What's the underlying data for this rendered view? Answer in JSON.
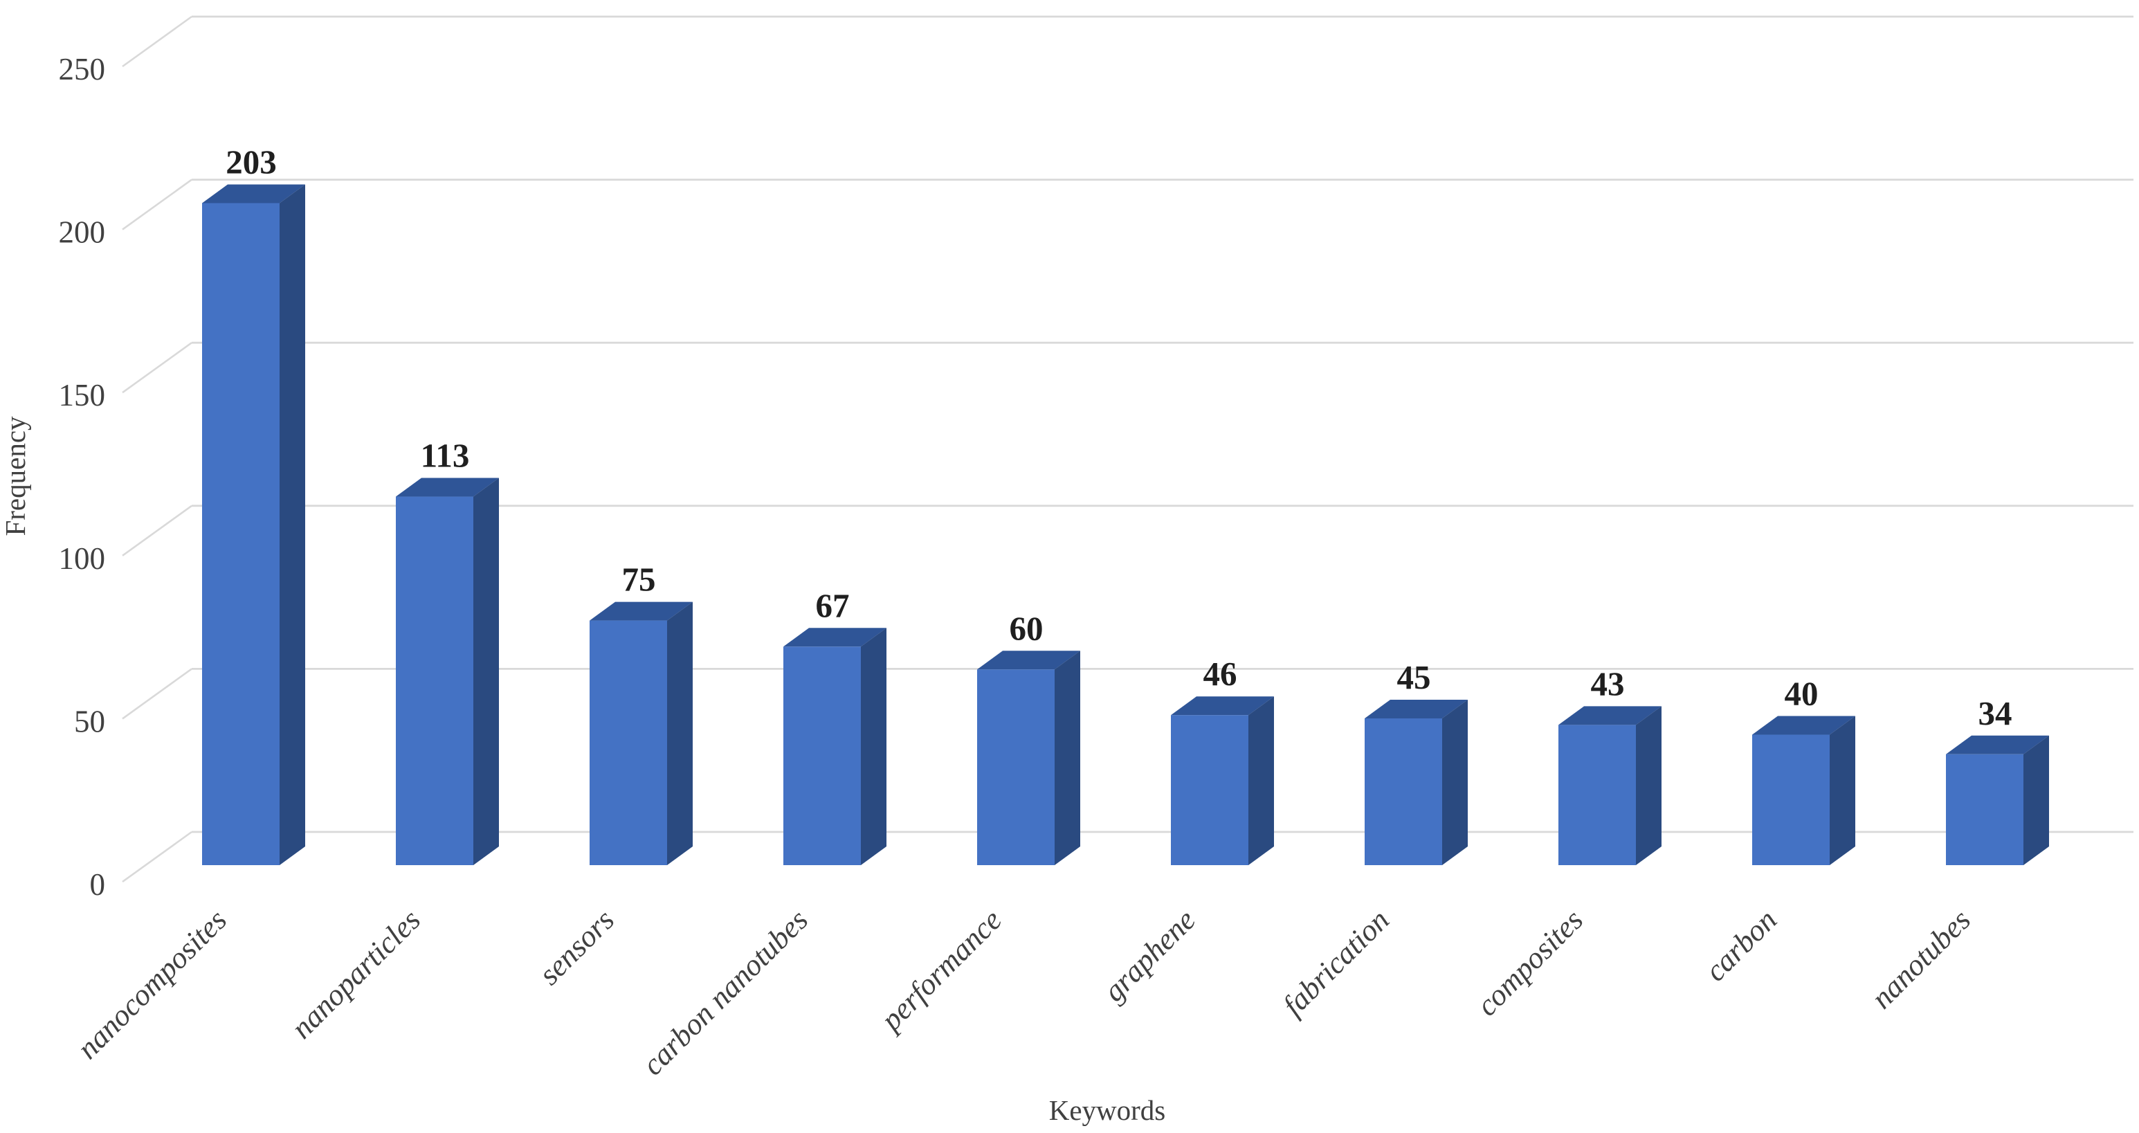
{
  "chart_data": {
    "type": "bar",
    "variant": "3d-column",
    "title": "",
    "xlabel": "Keywords",
    "ylabel": "Frequency",
    "categories": [
      "nanocomposites",
      "nanoparticles",
      "sensors",
      "carbon nanotubes",
      "performance",
      "graphene",
      "fabrication",
      "composites",
      "carbon",
      "nanotubes"
    ],
    "values": [
      203,
      113,
      75,
      67,
      60,
      46,
      45,
      43,
      40,
      34
    ],
    "ylim": [
      0,
      250
    ],
    "yticks": [
      0,
      50,
      100,
      150,
      200,
      250
    ],
    "grid": true,
    "legend": "none",
    "colors": {
      "bar_front": "#4472C4",
      "bar_top": "#2F5597",
      "bar_side": "#2A4A80",
      "gridline": "#D9D9D9",
      "axis_text": "#404040",
      "data_label": "#1F1F1F",
      "background": "#FFFFFF"
    }
  }
}
